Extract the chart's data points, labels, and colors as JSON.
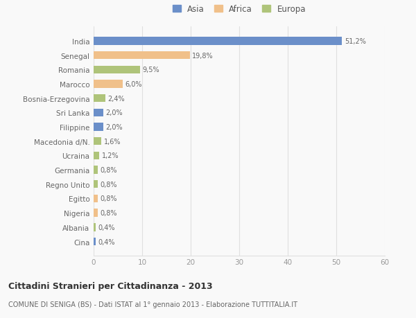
{
  "categories": [
    "India",
    "Senegal",
    "Romania",
    "Marocco",
    "Bosnia-Erzegovina",
    "Sri Lanka",
    "Filippine",
    "Macedonia d/N.",
    "Ucraina",
    "Germania",
    "Regno Unito",
    "Egitto",
    "Nigeria",
    "Albania",
    "Cina"
  ],
  "values": [
    51.2,
    19.8,
    9.5,
    6.0,
    2.4,
    2.0,
    2.0,
    1.6,
    1.2,
    0.8,
    0.8,
    0.8,
    0.8,
    0.4,
    0.4
  ],
  "labels": [
    "51,2%",
    "19,8%",
    "9,5%",
    "6,0%",
    "2,4%",
    "2,0%",
    "2,0%",
    "1,6%",
    "1,2%",
    "0,8%",
    "0,8%",
    "0,8%",
    "0,8%",
    "0,4%",
    "0,4%"
  ],
  "colors": [
    "#6b8fc9",
    "#f0c08a",
    "#afc47a",
    "#f0c08a",
    "#afc47a",
    "#6b8fc9",
    "#6b8fc9",
    "#afc47a",
    "#afc47a",
    "#afc47a",
    "#afc47a",
    "#f0c08a",
    "#f0c08a",
    "#afc47a",
    "#6b8fc9"
  ],
  "legend_labels": [
    "Asia",
    "Africa",
    "Europa"
  ],
  "legend_colors": [
    "#6b8fc9",
    "#f0c08a",
    "#afc47a"
  ],
  "title": "Cittadini Stranieri per Cittadinanza - 2013",
  "subtitle": "COMUNE DI SENIGA (BS) - Dati ISTAT al 1° gennaio 2013 - Elaborazione TUTTITALIA.IT",
  "xlim": [
    0,
    60
  ],
  "xticks": [
    0,
    10,
    20,
    30,
    40,
    50,
    60
  ],
  "bg_color": "#f9f9f9",
  "grid_color": "#e0e0e0",
  "bar_height": 0.55
}
